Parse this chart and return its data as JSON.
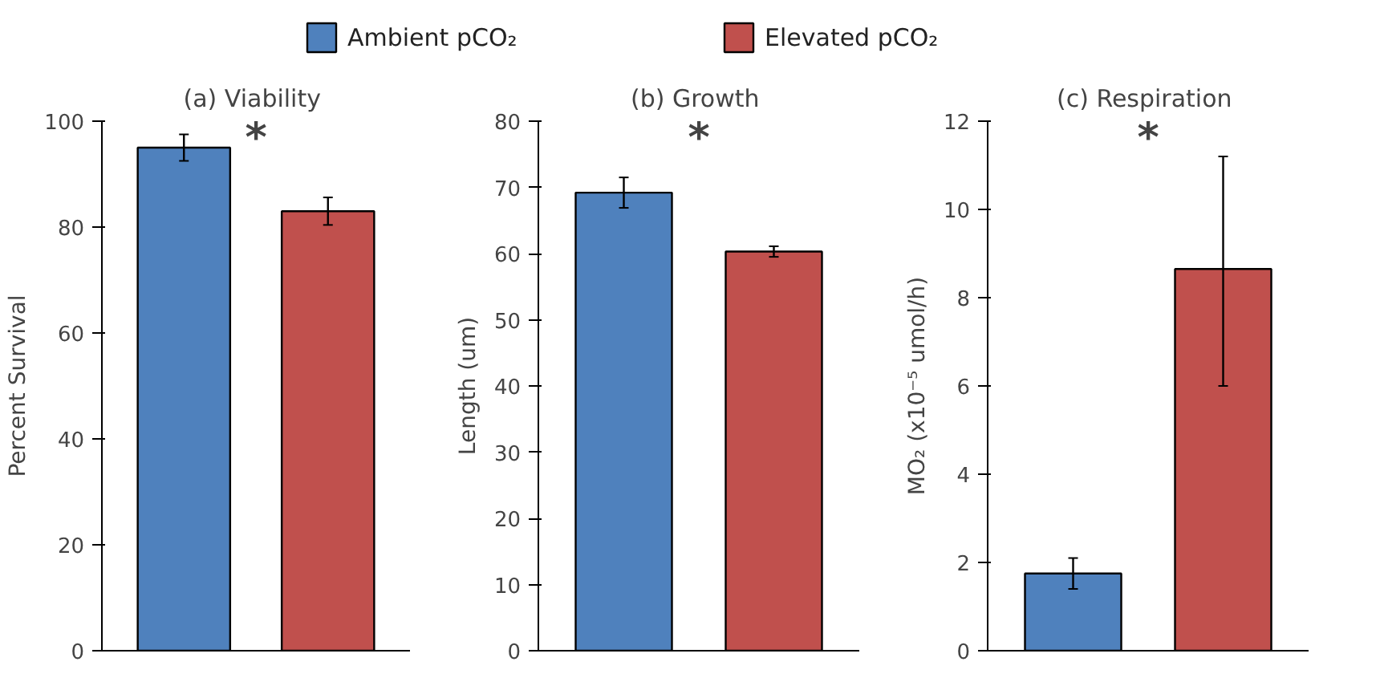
{
  "chart_data": [
    {
      "type": "bar",
      "title": "(a)  Viability",
      "ylabel": "Percent Survival",
      "categories": [
        null
      ],
      "legend": "top",
      "series": [
        {
          "name": "Ambient pCO₂",
          "color": "#4f81bd",
          "values": [
            95
          ],
          "errors": [
            2.5
          ]
        },
        {
          "name": "Elevated pCO₂",
          "color": "#c0504d",
          "values": [
            83
          ],
          "errors": [
            2.6
          ]
        }
      ],
      "ylim": [
        0,
        100
      ],
      "yticks": [
        0,
        20,
        40,
        60,
        80,
        100
      ],
      "annotations": [
        "*"
      ],
      "grid": false
    },
    {
      "type": "bar",
      "title": "(b)  Growth",
      "ylabel": "Length (um)",
      "categories": [
        null
      ],
      "series": [
        {
          "color": "#4f81bd",
          "values": [
            69.2
          ],
          "errors": [
            2.3
          ]
        },
        {
          "color": "#c0504d",
          "values": [
            60.3
          ],
          "errors": [
            0.8
          ]
        }
      ],
      "ylim": [
        0,
        80
      ],
      "yticks": [
        0,
        10,
        20,
        30,
        40,
        50,
        60,
        70,
        80
      ],
      "annotations": [
        "*"
      ],
      "grid": false
    },
    {
      "type": "bar",
      "title": "(c)  Respiration",
      "ylabel": "MO₂ (x10⁻⁵ umol/h)",
      "categories": [
        null
      ],
      "series": [
        {
          "color": "#4f81bd",
          "values": [
            1.75
          ],
          "errors": [
            0.35
          ]
        },
        {
          "color": "#c0504d",
          "values": [
            8.65
          ],
          "errors": [
            [
              6.0,
              11.2
            ]
          ]
        }
      ],
      "ylim": [
        0,
        12
      ],
      "yticks": [
        0,
        2,
        4,
        6,
        8,
        10,
        12
      ],
      "annotations": [
        "*"
      ],
      "grid": false
    }
  ]
}
